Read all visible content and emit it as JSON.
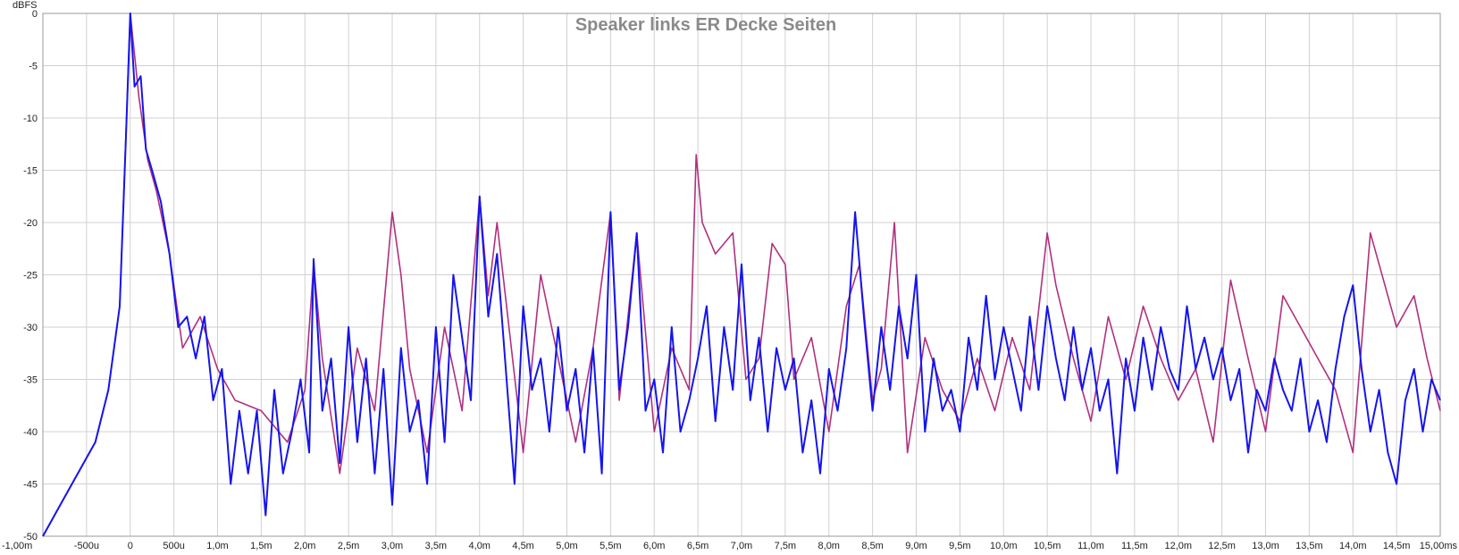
{
  "chart_data": {
    "type": "line",
    "title": "Speaker links ER Decke Seiten",
    "ylabel": "dBFS",
    "xlabel": "",
    "xlim": [
      -1.0,
      15.0
    ],
    "ylim": [
      -50,
      0
    ],
    "grid": true,
    "x_tick_values": [
      -1.0,
      -0.5,
      0,
      0.5,
      1.0,
      1.5,
      2.0,
      2.5,
      3.0,
      3.5,
      4.0,
      4.5,
      5.0,
      5.5,
      6.0,
      6.5,
      7.0,
      7.5,
      8.0,
      8.5,
      9.0,
      9.5,
      10.0,
      10.5,
      11.0,
      11.5,
      12.0,
      12.5,
      13.0,
      13.5,
      14.0,
      14.5,
      15.0
    ],
    "x_tick_labels": [
      "-1,00m",
      "-500u",
      "0",
      "500u",
      "1,0m",
      "1,5m",
      "2,0m",
      "2,5m",
      "3,0m",
      "3,5m",
      "4,0m",
      "4,5m",
      "5,0m",
      "5,5m",
      "6,0m",
      "6,5m",
      "7,0m",
      "7,5m",
      "8,0m",
      "8,5m",
      "9,0m",
      "9,5m",
      "10,0m",
      "10,5m",
      "11,0m",
      "11,5m",
      "12,0m",
      "12,5m",
      "13,0m",
      "13,5m",
      "14,0m",
      "14,5m",
      "15,00ms"
    ],
    "y_tick_values": [
      0,
      -5,
      -10,
      -15,
      -20,
      -25,
      -30,
      -35,
      -40,
      -45,
      -50
    ],
    "y_tick_labels": [
      "0",
      "-5",
      "-10",
      "-15",
      "-20",
      "-25",
      "-30",
      "-35",
      "-40",
      "-45",
      "-50"
    ],
    "series": [
      {
        "color": "#b0307f",
        "points": [
          [
            -1.0,
            -50
          ],
          [
            -0.8,
            -47
          ],
          [
            -0.6,
            -44
          ],
          [
            -0.4,
            -41
          ],
          [
            -0.25,
            -36
          ],
          [
            -0.12,
            -28
          ],
          [
            0,
            0
          ],
          [
            0.1,
            -8
          ],
          [
            0.2,
            -14
          ],
          [
            0.3,
            -17
          ],
          [
            0.45,
            -23
          ],
          [
            0.6,
            -32
          ],
          [
            0.8,
            -29
          ],
          [
            1.0,
            -34
          ],
          [
            1.2,
            -37
          ],
          [
            1.5,
            -38
          ],
          [
            1.8,
            -41
          ],
          [
            2.0,
            -36
          ],
          [
            2.1,
            -24
          ],
          [
            2.2,
            -33
          ],
          [
            2.4,
            -44
          ],
          [
            2.6,
            -32
          ],
          [
            2.8,
            -38
          ],
          [
            3.0,
            -19
          ],
          [
            3.1,
            -25
          ],
          [
            3.2,
            -34
          ],
          [
            3.4,
            -42
          ],
          [
            3.6,
            -30
          ],
          [
            3.8,
            -38
          ],
          [
            4.0,
            -17.5
          ],
          [
            4.1,
            -27
          ],
          [
            4.2,
            -20
          ],
          [
            4.35,
            -31
          ],
          [
            4.5,
            -42
          ],
          [
            4.7,
            -25
          ],
          [
            4.9,
            -33
          ],
          [
            5.1,
            -41
          ],
          [
            5.3,
            -32
          ],
          [
            5.5,
            -19
          ],
          [
            5.6,
            -37
          ],
          [
            5.8,
            -21
          ],
          [
            6.0,
            -40
          ],
          [
            6.2,
            -32
          ],
          [
            6.4,
            -36
          ],
          [
            6.48,
            -13.5
          ],
          [
            6.55,
            -20
          ],
          [
            6.7,
            -23
          ],
          [
            6.9,
            -21
          ],
          [
            7.05,
            -35
          ],
          [
            7.2,
            -33
          ],
          [
            7.35,
            -22
          ],
          [
            7.5,
            -24
          ],
          [
            7.6,
            -35
          ],
          [
            7.8,
            -31
          ],
          [
            8.0,
            -40
          ],
          [
            8.2,
            -28
          ],
          [
            8.35,
            -24
          ],
          [
            8.5,
            -37
          ],
          [
            8.6,
            -34
          ],
          [
            8.75,
            -20
          ],
          [
            8.9,
            -42
          ],
          [
            9.1,
            -31
          ],
          [
            9.3,
            -36
          ],
          [
            9.5,
            -39
          ],
          [
            9.7,
            -33
          ],
          [
            9.9,
            -38
          ],
          [
            10.1,
            -31
          ],
          [
            10.3,
            -36
          ],
          [
            10.5,
            -21
          ],
          [
            10.6,
            -26
          ],
          [
            10.8,
            -33
          ],
          [
            11.0,
            -39
          ],
          [
            11.2,
            -29
          ],
          [
            11.4,
            -35
          ],
          [
            11.6,
            -28
          ],
          [
            11.8,
            -33
          ],
          [
            12.0,
            -37
          ],
          [
            12.2,
            -34
          ],
          [
            12.4,
            -41
          ],
          [
            12.6,
            -25.5
          ],
          [
            12.8,
            -33
          ],
          [
            13.0,
            -40
          ],
          [
            13.2,
            -27
          ],
          [
            13.4,
            -30
          ],
          [
            13.6,
            -33
          ],
          [
            13.8,
            -36
          ],
          [
            14.0,
            -42
          ],
          [
            14.2,
            -21
          ],
          [
            14.3,
            -24
          ],
          [
            14.5,
            -30
          ],
          [
            14.7,
            -27
          ],
          [
            14.85,
            -33
          ],
          [
            15.0,
            -38
          ]
        ]
      },
      {
        "color": "#1515ee",
        "points": [
          [
            -1.0,
            -50
          ],
          [
            -0.8,
            -47
          ],
          [
            -0.6,
            -44
          ],
          [
            -0.4,
            -41
          ],
          [
            -0.25,
            -36
          ],
          [
            -0.12,
            -28
          ],
          [
            -0.05,
            -12
          ],
          [
            0,
            0
          ],
          [
            0.05,
            -7
          ],
          [
            0.12,
            -6
          ],
          [
            0.18,
            -13
          ],
          [
            0.25,
            -15
          ],
          [
            0.35,
            -18
          ],
          [
            0.45,
            -23
          ],
          [
            0.55,
            -30
          ],
          [
            0.65,
            -29
          ],
          [
            0.75,
            -33
          ],
          [
            0.85,
            -29
          ],
          [
            0.95,
            -37
          ],
          [
            1.05,
            -34
          ],
          [
            1.15,
            -45
          ],
          [
            1.25,
            -38
          ],
          [
            1.35,
            -44
          ],
          [
            1.45,
            -38
          ],
          [
            1.55,
            -48
          ],
          [
            1.65,
            -36
          ],
          [
            1.75,
            -44
          ],
          [
            1.85,
            -40
          ],
          [
            1.95,
            -35
          ],
          [
            2.05,
            -42
          ],
          [
            2.1,
            -23.5
          ],
          [
            2.2,
            -38
          ],
          [
            2.3,
            -33
          ],
          [
            2.4,
            -43
          ],
          [
            2.5,
            -30
          ],
          [
            2.6,
            -41
          ],
          [
            2.7,
            -33
          ],
          [
            2.8,
            -44
          ],
          [
            2.9,
            -34
          ],
          [
            3.0,
            -47
          ],
          [
            3.1,
            -32
          ],
          [
            3.2,
            -40
          ],
          [
            3.3,
            -37
          ],
          [
            3.4,
            -45
          ],
          [
            3.5,
            -30
          ],
          [
            3.6,
            -41
          ],
          [
            3.7,
            -25
          ],
          [
            3.8,
            -31
          ],
          [
            3.9,
            -37
          ],
          [
            4.0,
            -17.5
          ],
          [
            4.1,
            -29
          ],
          [
            4.2,
            -23
          ],
          [
            4.3,
            -34
          ],
          [
            4.4,
            -45
          ],
          [
            4.5,
            -28
          ],
          [
            4.6,
            -36
          ],
          [
            4.7,
            -33
          ],
          [
            4.8,
            -40
          ],
          [
            4.9,
            -30
          ],
          [
            5.0,
            -38
          ],
          [
            5.1,
            -34
          ],
          [
            5.2,
            -42
          ],
          [
            5.3,
            -32
          ],
          [
            5.4,
            -44
          ],
          [
            5.5,
            -19
          ],
          [
            5.6,
            -36
          ],
          [
            5.7,
            -30
          ],
          [
            5.8,
            -21
          ],
          [
            5.9,
            -38
          ],
          [
            6.0,
            -35
          ],
          [
            6.1,
            -42
          ],
          [
            6.2,
            -30
          ],
          [
            6.3,
            -40
          ],
          [
            6.4,
            -37
          ],
          [
            6.5,
            -33
          ],
          [
            6.6,
            -28
          ],
          [
            6.7,
            -39
          ],
          [
            6.8,
            -30
          ],
          [
            6.9,
            -36
          ],
          [
            7.0,
            -24
          ],
          [
            7.1,
            -37
          ],
          [
            7.2,
            -31
          ],
          [
            7.3,
            -40
          ],
          [
            7.4,
            -32
          ],
          [
            7.5,
            -36
          ],
          [
            7.6,
            -33
          ],
          [
            7.7,
            -42
          ],
          [
            7.8,
            -37
          ],
          [
            7.9,
            -44
          ],
          [
            8.0,
            -34
          ],
          [
            8.1,
            -38
          ],
          [
            8.2,
            -32
          ],
          [
            8.3,
            -19
          ],
          [
            8.4,
            -29
          ],
          [
            8.5,
            -38
          ],
          [
            8.6,
            -30
          ],
          [
            8.7,
            -36
          ],
          [
            8.8,
            -28
          ],
          [
            8.9,
            -33
          ],
          [
            9.0,
            -25
          ],
          [
            9.1,
            -40
          ],
          [
            9.2,
            -33
          ],
          [
            9.3,
            -38
          ],
          [
            9.4,
            -36
          ],
          [
            9.5,
            -40
          ],
          [
            9.6,
            -31
          ],
          [
            9.7,
            -36
          ],
          [
            9.8,
            -27
          ],
          [
            9.9,
            -35
          ],
          [
            10.0,
            -30
          ],
          [
            10.1,
            -34
          ],
          [
            10.2,
            -38
          ],
          [
            10.3,
            -29
          ],
          [
            10.4,
            -36
          ],
          [
            10.5,
            -28
          ],
          [
            10.6,
            -33
          ],
          [
            10.7,
            -37
          ],
          [
            10.8,
            -30
          ],
          [
            10.9,
            -36
          ],
          [
            11.0,
            -32
          ],
          [
            11.1,
            -38
          ],
          [
            11.2,
            -35
          ],
          [
            11.3,
            -44
          ],
          [
            11.4,
            -33
          ],
          [
            11.5,
            -38
          ],
          [
            11.6,
            -31
          ],
          [
            11.7,
            -36
          ],
          [
            11.8,
            -30
          ],
          [
            11.9,
            -34
          ],
          [
            12.0,
            -36
          ],
          [
            12.1,
            -28
          ],
          [
            12.2,
            -34
          ],
          [
            12.3,
            -31
          ],
          [
            12.4,
            -35
          ],
          [
            12.5,
            -32
          ],
          [
            12.6,
            -37
          ],
          [
            12.7,
            -34
          ],
          [
            12.8,
            -42
          ],
          [
            12.9,
            -36
          ],
          [
            13.0,
            -38
          ],
          [
            13.1,
            -33
          ],
          [
            13.2,
            -36
          ],
          [
            13.3,
            -38
          ],
          [
            13.4,
            -33
          ],
          [
            13.5,
            -40
          ],
          [
            13.6,
            -37
          ],
          [
            13.7,
            -41
          ],
          [
            13.8,
            -34
          ],
          [
            13.9,
            -29
          ],
          [
            14.0,
            -26
          ],
          [
            14.1,
            -34
          ],
          [
            14.2,
            -40
          ],
          [
            14.3,
            -36
          ],
          [
            14.4,
            -42
          ],
          [
            14.5,
            -45
          ],
          [
            14.6,
            -37
          ],
          [
            14.7,
            -34
          ],
          [
            14.8,
            -40
          ],
          [
            14.9,
            -35
          ],
          [
            15.0,
            -37
          ]
        ]
      }
    ]
  }
}
